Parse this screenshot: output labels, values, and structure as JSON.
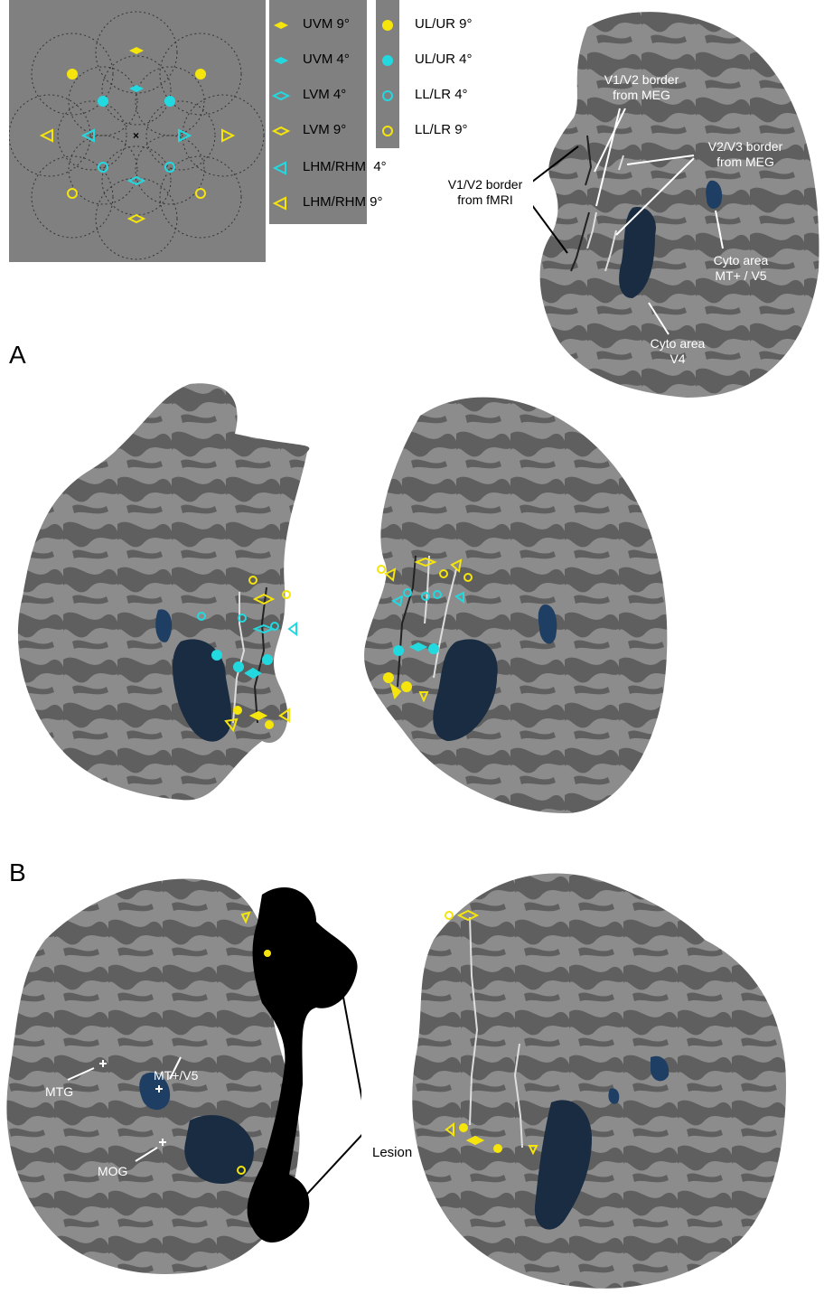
{
  "legend": {
    "col1": [
      "UVM 9°",
      "UVM 4°",
      "LVM 4°",
      "LVM 9°",
      "LHM/RHM  4°",
      "LHM/RHM 9°"
    ],
    "col2": [
      "UL/UR 9°",
      "UL/UR 4°",
      "LL/LR 4°",
      "LL/LR 9°"
    ]
  },
  "panel_labels": {
    "a": "A",
    "b": "B"
  },
  "annotations": {
    "v1v2_meg_1": "V1/V2 border",
    "v1v2_meg_2": "from MEG",
    "v2v3_meg_1": "V2/V3 border",
    "v2v3_meg_2": "from MEG",
    "v1v2_fmri_1": "V1/V2 border",
    "v1v2_fmri_2": "from fMRI",
    "cyto_mt_1": "Cyto area",
    "cyto_mt_2": "MT+ / V5",
    "cyto_v4_1": "Cyto area",
    "cyto_v4_2": "V4",
    "mt_v5": "MT+/V5",
    "mtg": "MTG",
    "mog": "MOG",
    "lesion": "Lesion"
  },
  "colors": {
    "yellow": "#f5e50c",
    "cyan": "#23d9e0",
    "cortex_light": "#8c8c8c",
    "cortex_dark": "#5f5f5f",
    "roi_blue": "#1f3e63",
    "roi_dark": "#1a2c42",
    "lesion": "#000000"
  }
}
